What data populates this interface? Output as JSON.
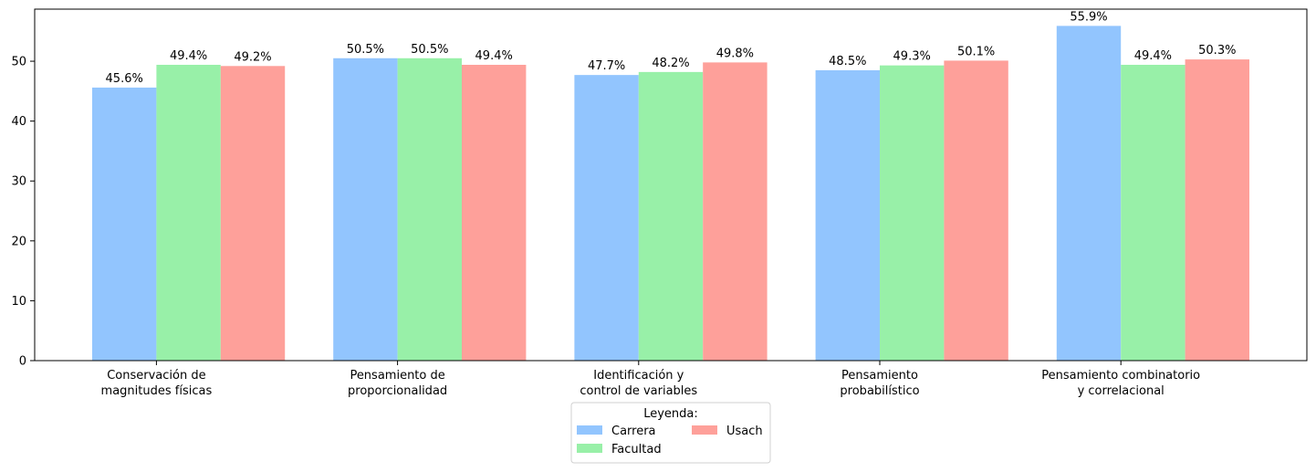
{
  "chart_data": {
    "type": "bar",
    "title": "",
    "xlabel": "",
    "ylabel": "",
    "categories": [
      [
        "Conservación de",
        "magnitudes físicas"
      ],
      [
        "Pensamiento de",
        "proporcionalidad"
      ],
      [
        "Identificación y",
        "control de variables"
      ],
      [
        "Pensamiento",
        "probabilístico"
      ],
      [
        "Pensamiento combinatorio",
        "y correlacional"
      ]
    ],
    "series": [
      {
        "name": "Carrera",
        "color": "#92c5fe",
        "values": [
          45.6,
          50.5,
          47.7,
          48.5,
          55.9
        ]
      },
      {
        "name": "Facultad",
        "color": "#98f0a8",
        "values": [
          49.4,
          50.5,
          48.2,
          49.3,
          49.4
        ]
      },
      {
        "name": "Usach",
        "color": "#fea09a",
        "values": [
          49.2,
          49.4,
          49.8,
          50.1,
          50.3
        ]
      }
    ],
    "value_suffix": "%",
    "ylim": [
      0,
      58.7
    ],
    "yticks": [
      0,
      10,
      20,
      30,
      40,
      50
    ],
    "grid": false,
    "legend": {
      "title": "Leyenda:",
      "placement": "bottom-center",
      "columns": 2
    }
  }
}
